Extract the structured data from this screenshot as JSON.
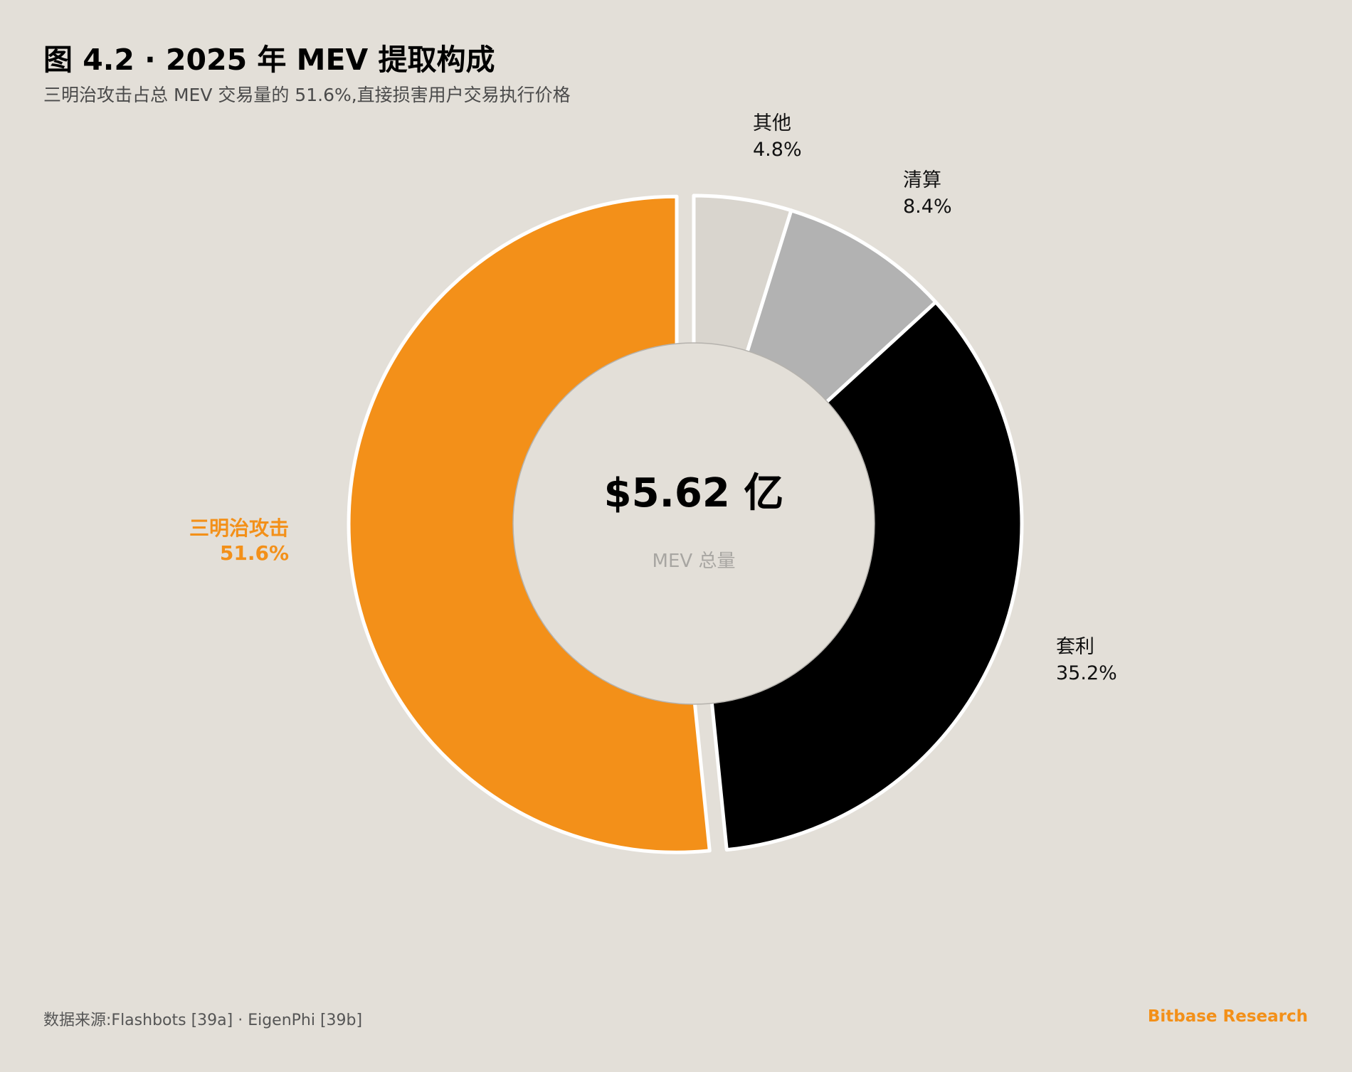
{
  "title": "图 4.2 · 2025 年 MEV 提取构成",
  "subtitle": "三明治攻击占总 MEV 交易量的 51.6%,直接损害用户交易执行价格",
  "footer": {
    "source": "数据来源:Flashbots [39a] · EigenPhi [39b]",
    "brand": "Bitbase Research"
  },
  "chart_data": {
    "type": "pie",
    "variant": "donut",
    "title": "图 4.2 · 2025 年 MEV 提取构成",
    "center_value": "$5.62 亿",
    "center_label": "MEV 总量",
    "slices": [
      {
        "label": "其他",
        "value": 4.8,
        "value_label": "4.8%",
        "color": "#d9d5ce"
      },
      {
        "label": "清算",
        "value": 8.4,
        "value_label": "8.4%",
        "color": "#b2b2b2"
      },
      {
        "label": "套利",
        "value": 35.2,
        "value_label": "35.2%",
        "color": "#000000"
      },
      {
        "label": "三明治攻击",
        "value": 51.6,
        "value_label": "51.6%",
        "color": "#f39019",
        "highlighted": true
      }
    ]
  }
}
